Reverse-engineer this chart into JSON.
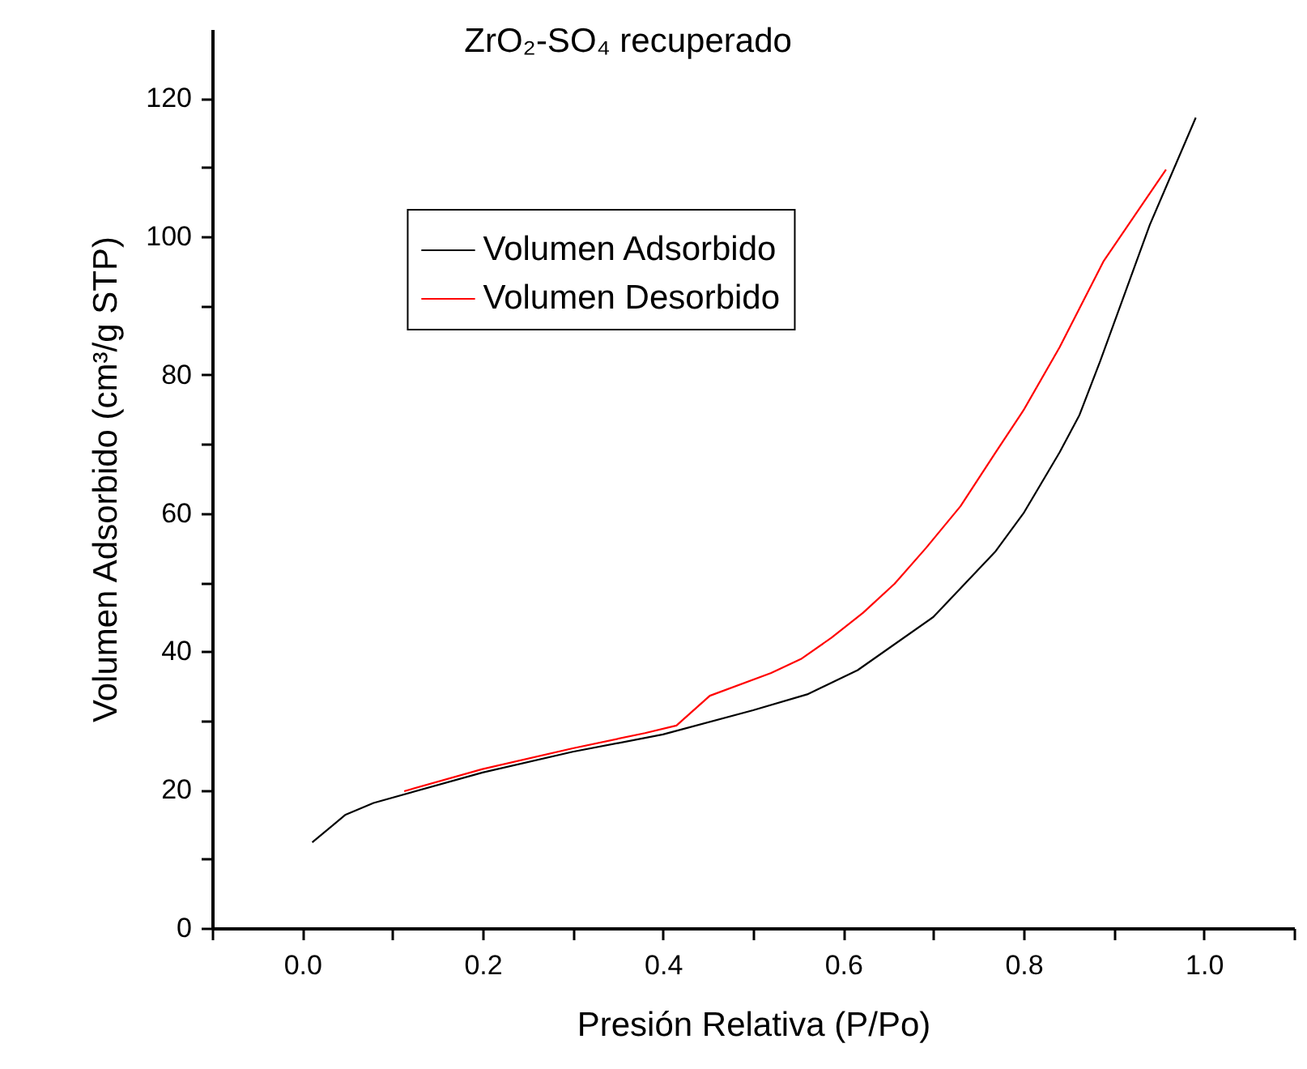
{
  "chart_data": {
    "type": "line",
    "title": "ZrO₂-SO₄ recuperado",
    "xlabel": "Presión Relativa (P/Po)",
    "ylabel": "Volumen Adsorbido (cm³/g STP)",
    "xlim": [
      -0.1,
      1.1
    ],
    "ylim": [
      0,
      130
    ],
    "xticks": [
      {
        "value": -0.1,
        "label": null
      },
      {
        "value": 0,
        "label": "0.0"
      },
      {
        "value": 0.1,
        "label": null
      },
      {
        "value": 0.2,
        "label": "0.2"
      },
      {
        "value": 0.3,
        "label": null
      },
      {
        "value": 0.4,
        "label": "0.4"
      },
      {
        "value": 0.5,
        "label": null
      },
      {
        "value": 0.6,
        "label": "0.6"
      },
      {
        "value": 0.7,
        "label": null
      },
      {
        "value": 0.8,
        "label": "0.8"
      },
      {
        "value": 0.9,
        "label": null
      },
      {
        "value": 1,
        "label": "1.0"
      },
      {
        "value": 1.1,
        "label": null
      }
    ],
    "yticks": [
      0,
      {
        "value": 10,
        "label": null
      },
      20,
      {
        "value": 30,
        "label": null
      },
      40,
      {
        "value": 50,
        "label": null
      },
      60,
      {
        "value": 70,
        "label": null
      },
      80,
      {
        "value": 90,
        "label": null
      },
      100,
      {
        "value": 110,
        "label": null
      },
      120
    ],
    "legend": "top left",
    "grid": false,
    "line_style": "solid",
    "marker": "none",
    "series": [
      {
        "name": "Volumen Adsorbido",
        "color": "#000000",
        "x": [
          0.011,
          0.048,
          0.079,
          0.2,
          0.3,
          0.4,
          0.5,
          0.56,
          0.616,
          0.7,
          0.769,
          0.8,
          0.84,
          0.862,
          0.885,
          0.94,
          0.991
        ],
        "values": [
          12.4,
          16.4,
          18.1,
          22.5,
          25.5,
          28,
          31.5,
          33.8,
          37.3,
          45,
          54.5,
          60,
          68.8,
          74.2,
          82,
          101.7,
          117.2
        ]
      },
      {
        "name": "Volumen Desorbido",
        "color": "#ff0000",
        "x": [
          0.113,
          0.2,
          0.3,
          0.38,
          0.415,
          0.452,
          0.52,
          0.553,
          0.587,
          0.622,
          0.657,
          0.692,
          0.73,
          0.769,
          0.8,
          0.84,
          0.889,
          0.958
        ],
        "values": [
          19.8,
          23,
          26,
          28.2,
          29.3,
          33.6,
          36.9,
          38.9,
          42,
          45.6,
          49.8,
          55,
          61,
          68.8,
          74.9,
          84,
          96.5,
          109.7
        ]
      }
    ]
  }
}
